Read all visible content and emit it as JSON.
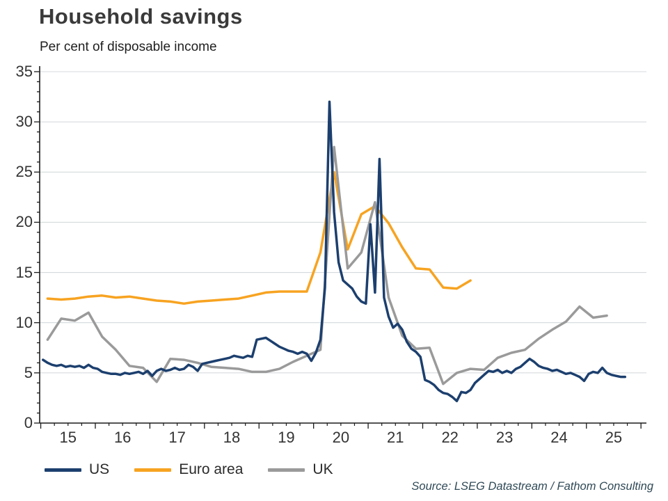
{
  "header": {
    "title": "Household savings",
    "subtitle": "Per cent of disposable income"
  },
  "source": "Source: LSEG Datastream / Fathom Consulting",
  "colors": {
    "us": "#1c3f6e",
    "euro_area": "#f7a321",
    "uk": "#9a9a9a",
    "gridline": "#d5dadc",
    "axis": "#1a1a1a"
  },
  "legend": [
    {
      "label": "US",
      "color": "#1c3f6e"
    },
    {
      "label": "Euro area",
      "color": "#f7a321"
    },
    {
      "label": "UK",
      "color": "#9a9a9a"
    }
  ],
  "chart_data": {
    "type": "line",
    "title": "Household savings",
    "subtitle": "Per cent of disposable income",
    "xlabel": "",
    "ylabel": "Per cent of disposable income",
    "grid": "horizontal",
    "legend_position": "bottom-left",
    "x_range": [
      2014.98,
      2026.1
    ],
    "y_range": [
      0,
      35
    ],
    "y_ticks": [
      0,
      5,
      10,
      15,
      20,
      25,
      30,
      35
    ],
    "x_tick_years": [
      2015,
      2016,
      2017,
      2018,
      2019,
      2020,
      2021,
      2022,
      2023,
      2024,
      2025
    ],
    "x_tick_labels": [
      "15",
      "16",
      "17",
      "18",
      "19",
      "20",
      "21",
      "22",
      "23",
      "24",
      "25"
    ],
    "series": [
      {
        "name": "Euro area",
        "color": "#f7a321",
        "freq": 4,
        "start_year": 2015,
        "values": [
          12.4,
          12.3,
          12.4,
          12.6,
          12.7,
          12.5,
          12.6,
          12.4,
          12.2,
          12.1,
          11.9,
          12.1,
          12.2,
          12.3,
          12.4,
          12.7,
          13.0,
          13.1,
          13.1,
          13.1,
          17.0,
          25.0,
          17.3,
          20.8,
          21.6,
          19.9,
          17.5,
          15.4,
          15.3,
          13.5,
          13.4,
          14.2
        ]
      },
      {
        "name": "UK",
        "color": "#9a9a9a",
        "freq": 4,
        "start_year": 2015,
        "values": [
          8.3,
          10.4,
          10.2,
          11.0,
          8.6,
          7.3,
          5.7,
          5.5,
          4.1,
          6.4,
          6.3,
          6.0,
          5.6,
          5.5,
          5.4,
          5.1,
          5.1,
          5.4,
          6.1,
          6.7,
          7.3,
          27.5,
          15.4,
          17.0,
          22.0,
          12.5,
          8.7,
          7.4,
          7.5,
          3.9,
          5.0,
          5.4,
          5.3,
          6.5,
          7.0,
          7.3,
          8.4,
          9.3,
          10.1,
          11.6,
          10.5,
          10.7
        ]
      },
      {
        "name": "US",
        "color": "#1c3f6e",
        "freq": 12,
        "start_year": 2015,
        "values": [
          6.3,
          6.0,
          5.8,
          5.7,
          5.8,
          5.6,
          5.7,
          5.6,
          5.7,
          5.5,
          5.8,
          5.5,
          5.4,
          5.1,
          5.0,
          4.9,
          4.9,
          4.8,
          5.0,
          4.9,
          5.0,
          5.1,
          4.9,
          5.2,
          4.7,
          5.2,
          5.4,
          5.2,
          5.3,
          5.5,
          5.3,
          5.4,
          5.8,
          5.6,
          5.2,
          5.9,
          6.0,
          6.1,
          6.2,
          6.3,
          6.4,
          6.5,
          6.7,
          6.6,
          6.5,
          6.7,
          6.6,
          8.3,
          8.4,
          8.5,
          8.2,
          7.9,
          7.6,
          7.4,
          7.2,
          7.1,
          6.9,
          7.1,
          6.9,
          6.2,
          7.0,
          8.3,
          13.5,
          32.0,
          21.0,
          16.0,
          14.2,
          13.8,
          13.4,
          12.6,
          12.1,
          11.9,
          19.8,
          13.0,
          26.3,
          12.5,
          10.6,
          9.5,
          9.9,
          9.3,
          8.1,
          7.4,
          7.1,
          6.6,
          4.3,
          4.1,
          3.8,
          3.3,
          3.0,
          2.9,
          2.6,
          2.2,
          3.1,
          3.0,
          3.3,
          4.0,
          4.4,
          4.8,
          5.2,
          5.1,
          5.3,
          5.0,
          5.2,
          5.0,
          5.4,
          5.6,
          6.0,
          6.4,
          6.1,
          5.7,
          5.5,
          5.4,
          5.2,
          5.3,
          5.1,
          4.9,
          5.0,
          4.8,
          4.6,
          4.2,
          4.9,
          5.1,
          5.0,
          5.5,
          5.0,
          4.8,
          4.7,
          4.6,
          4.6
        ]
      }
    ]
  }
}
